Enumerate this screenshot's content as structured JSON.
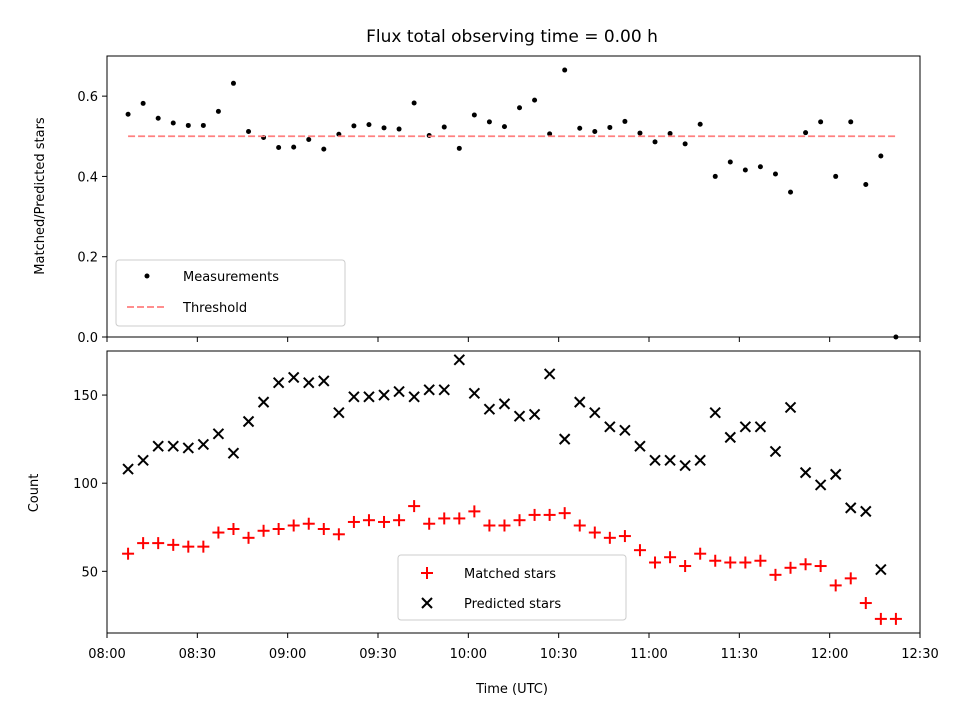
{
  "chart_data": [
    {
      "type": "scatter",
      "title": "Flux total observing time = 0.00 h",
      "xlabel": "",
      "ylabel": "Matched/Predicted stars",
      "xlim": [
        "08:00",
        "12:30"
      ],
      "ylim": [
        0,
        0.7
      ],
      "yticks": [
        "0.0",
        "0.2",
        "0.4",
        "0.6"
      ],
      "legend": {
        "placement": "lower-left",
        "entries": [
          "Measurements",
          "Threshold"
        ]
      },
      "grid": false,
      "series": [
        {
          "name": "Measurements",
          "marker": "dot",
          "color": "#000000",
          "x": [
            "08:07",
            "08:12",
            "08:17",
            "08:22",
            "08:27",
            "08:32",
            "08:37",
            "08:42",
            "08:47",
            "08:52",
            "08:57",
            "09:02",
            "09:07",
            "09:12",
            "09:17",
            "09:22",
            "09:27",
            "09:32",
            "09:37",
            "09:42",
            "09:47",
            "09:52",
            "09:57",
            "10:02",
            "10:07",
            "10:12",
            "10:17",
            "10:22",
            "10:27",
            "10:32",
            "10:37",
            "10:42",
            "10:47",
            "10:52",
            "10:57",
            "11:02",
            "11:07",
            "11:12",
            "11:17",
            "11:22",
            "11:27",
            "11:32",
            "11:37",
            "11:42",
            "11:47",
            "11:52",
            "11:57",
            "12:02",
            "12:07",
            "12:12",
            "12:17",
            "12:22"
          ],
          "y": [
            0.555,
            0.582,
            0.545,
            0.533,
            0.527,
            0.527,
            0.562,
            0.632,
            0.512,
            0.497,
            0.472,
            0.473,
            0.492,
            0.468,
            0.505,
            0.526,
            0.529,
            0.521,
            0.518,
            0.583,
            0.502,
            0.523,
            0.47,
            0.553,
            0.536,
            0.524,
            0.571,
            0.59,
            0.506,
            0.665,
            0.52,
            0.512,
            0.522,
            0.537,
            0.508,
            0.486,
            0.507,
            0.481,
            0.53,
            0.4,
            0.436,
            0.416,
            0.424,
            0.406,
            0.361,
            0.509,
            0.536,
            0.4,
            0.536,
            0.38,
            0.451,
            0.0
          ]
        },
        {
          "name": "Threshold",
          "style": "dashed",
          "color": "#ff7f7f",
          "x": [
            "08:07",
            "12:22"
          ],
          "y": [
            0.5,
            0.5
          ]
        }
      ]
    },
    {
      "type": "scatter",
      "title": "",
      "xlabel": "Time (UTC)",
      "ylabel": "Count",
      "xlim": [
        "08:00",
        "12:30"
      ],
      "ylim": [
        15,
        175
      ],
      "xticks": [
        "08:00",
        "08:30",
        "09:00",
        "09:30",
        "10:00",
        "10:30",
        "11:00",
        "11:30",
        "12:00",
        "12:30"
      ],
      "yticks": [
        "50",
        "100",
        "150"
      ],
      "legend": {
        "placement": "lower-center",
        "entries": [
          "Matched stars",
          "Predicted stars"
        ]
      },
      "grid": false,
      "series": [
        {
          "name": "Matched stars",
          "marker": "plus",
          "color": "#ff0000",
          "x": [
            "08:07",
            "08:12",
            "08:17",
            "08:22",
            "08:27",
            "08:32",
            "08:37",
            "08:42",
            "08:47",
            "08:52",
            "08:57",
            "09:02",
            "09:07",
            "09:12",
            "09:17",
            "09:22",
            "09:27",
            "09:32",
            "09:37",
            "09:42",
            "09:47",
            "09:52",
            "09:57",
            "10:02",
            "10:07",
            "10:12",
            "10:17",
            "10:22",
            "10:27",
            "10:32",
            "10:37",
            "10:42",
            "10:47",
            "10:52",
            "10:57",
            "11:02",
            "11:07",
            "11:12",
            "11:17",
            "11:22",
            "11:27",
            "11:32",
            "11:37",
            "11:42",
            "11:47",
            "11:52",
            "11:57",
            "12:02",
            "12:07",
            "12:12",
            "12:17",
            "12:22"
          ],
          "y": [
            60,
            66,
            66,
            65,
            64,
            64,
            72,
            74,
            69,
            73,
            74,
            76,
            77,
            74,
            71,
            78,
            79,
            78,
            79,
            87,
            77,
            80,
            80,
            84,
            76,
            76,
            79,
            82,
            82,
            83,
            76,
            72,
            69,
            70,
            62,
            55,
            58,
            53,
            60,
            56,
            55,
            55,
            56,
            48,
            52,
            54,
            53,
            42,
            46,
            32,
            23,
            23
          ]
        },
        {
          "name": "Predicted stars",
          "marker": "x",
          "color": "#000000",
          "x": [
            "08:07",
            "08:12",
            "08:17",
            "08:22",
            "08:27",
            "08:32",
            "08:37",
            "08:42",
            "08:47",
            "08:52",
            "08:57",
            "09:02",
            "09:07",
            "09:12",
            "09:17",
            "09:22",
            "09:27",
            "09:32",
            "09:37",
            "09:42",
            "09:47",
            "09:52",
            "09:57",
            "10:02",
            "10:07",
            "10:12",
            "10:17",
            "10:22",
            "10:27",
            "10:32",
            "10:37",
            "10:42",
            "10:47",
            "10:52",
            "10:57",
            "11:02",
            "11:07",
            "11:12",
            "11:17",
            "11:22",
            "11:27",
            "11:32",
            "11:37",
            "11:42",
            "11:47",
            "11:52",
            "11:57",
            "12:02",
            "12:07",
            "12:12",
            "12:17"
          ],
          "y": [
            108,
            113,
            121,
            121,
            120,
            122,
            128,
            117,
            135,
            146,
            157,
            160,
            157,
            158,
            140,
            149,
            149,
            150,
            152,
            149,
            153,
            153,
            170,
            151,
            142,
            145,
            138,
            139,
            162,
            125,
            146,
            140,
            132,
            130,
            121,
            113,
            113,
            110,
            113,
            140,
            126,
            132,
            132,
            118,
            143,
            106,
            99,
            105,
            86,
            84,
            51
          ]
        }
      ]
    }
  ]
}
